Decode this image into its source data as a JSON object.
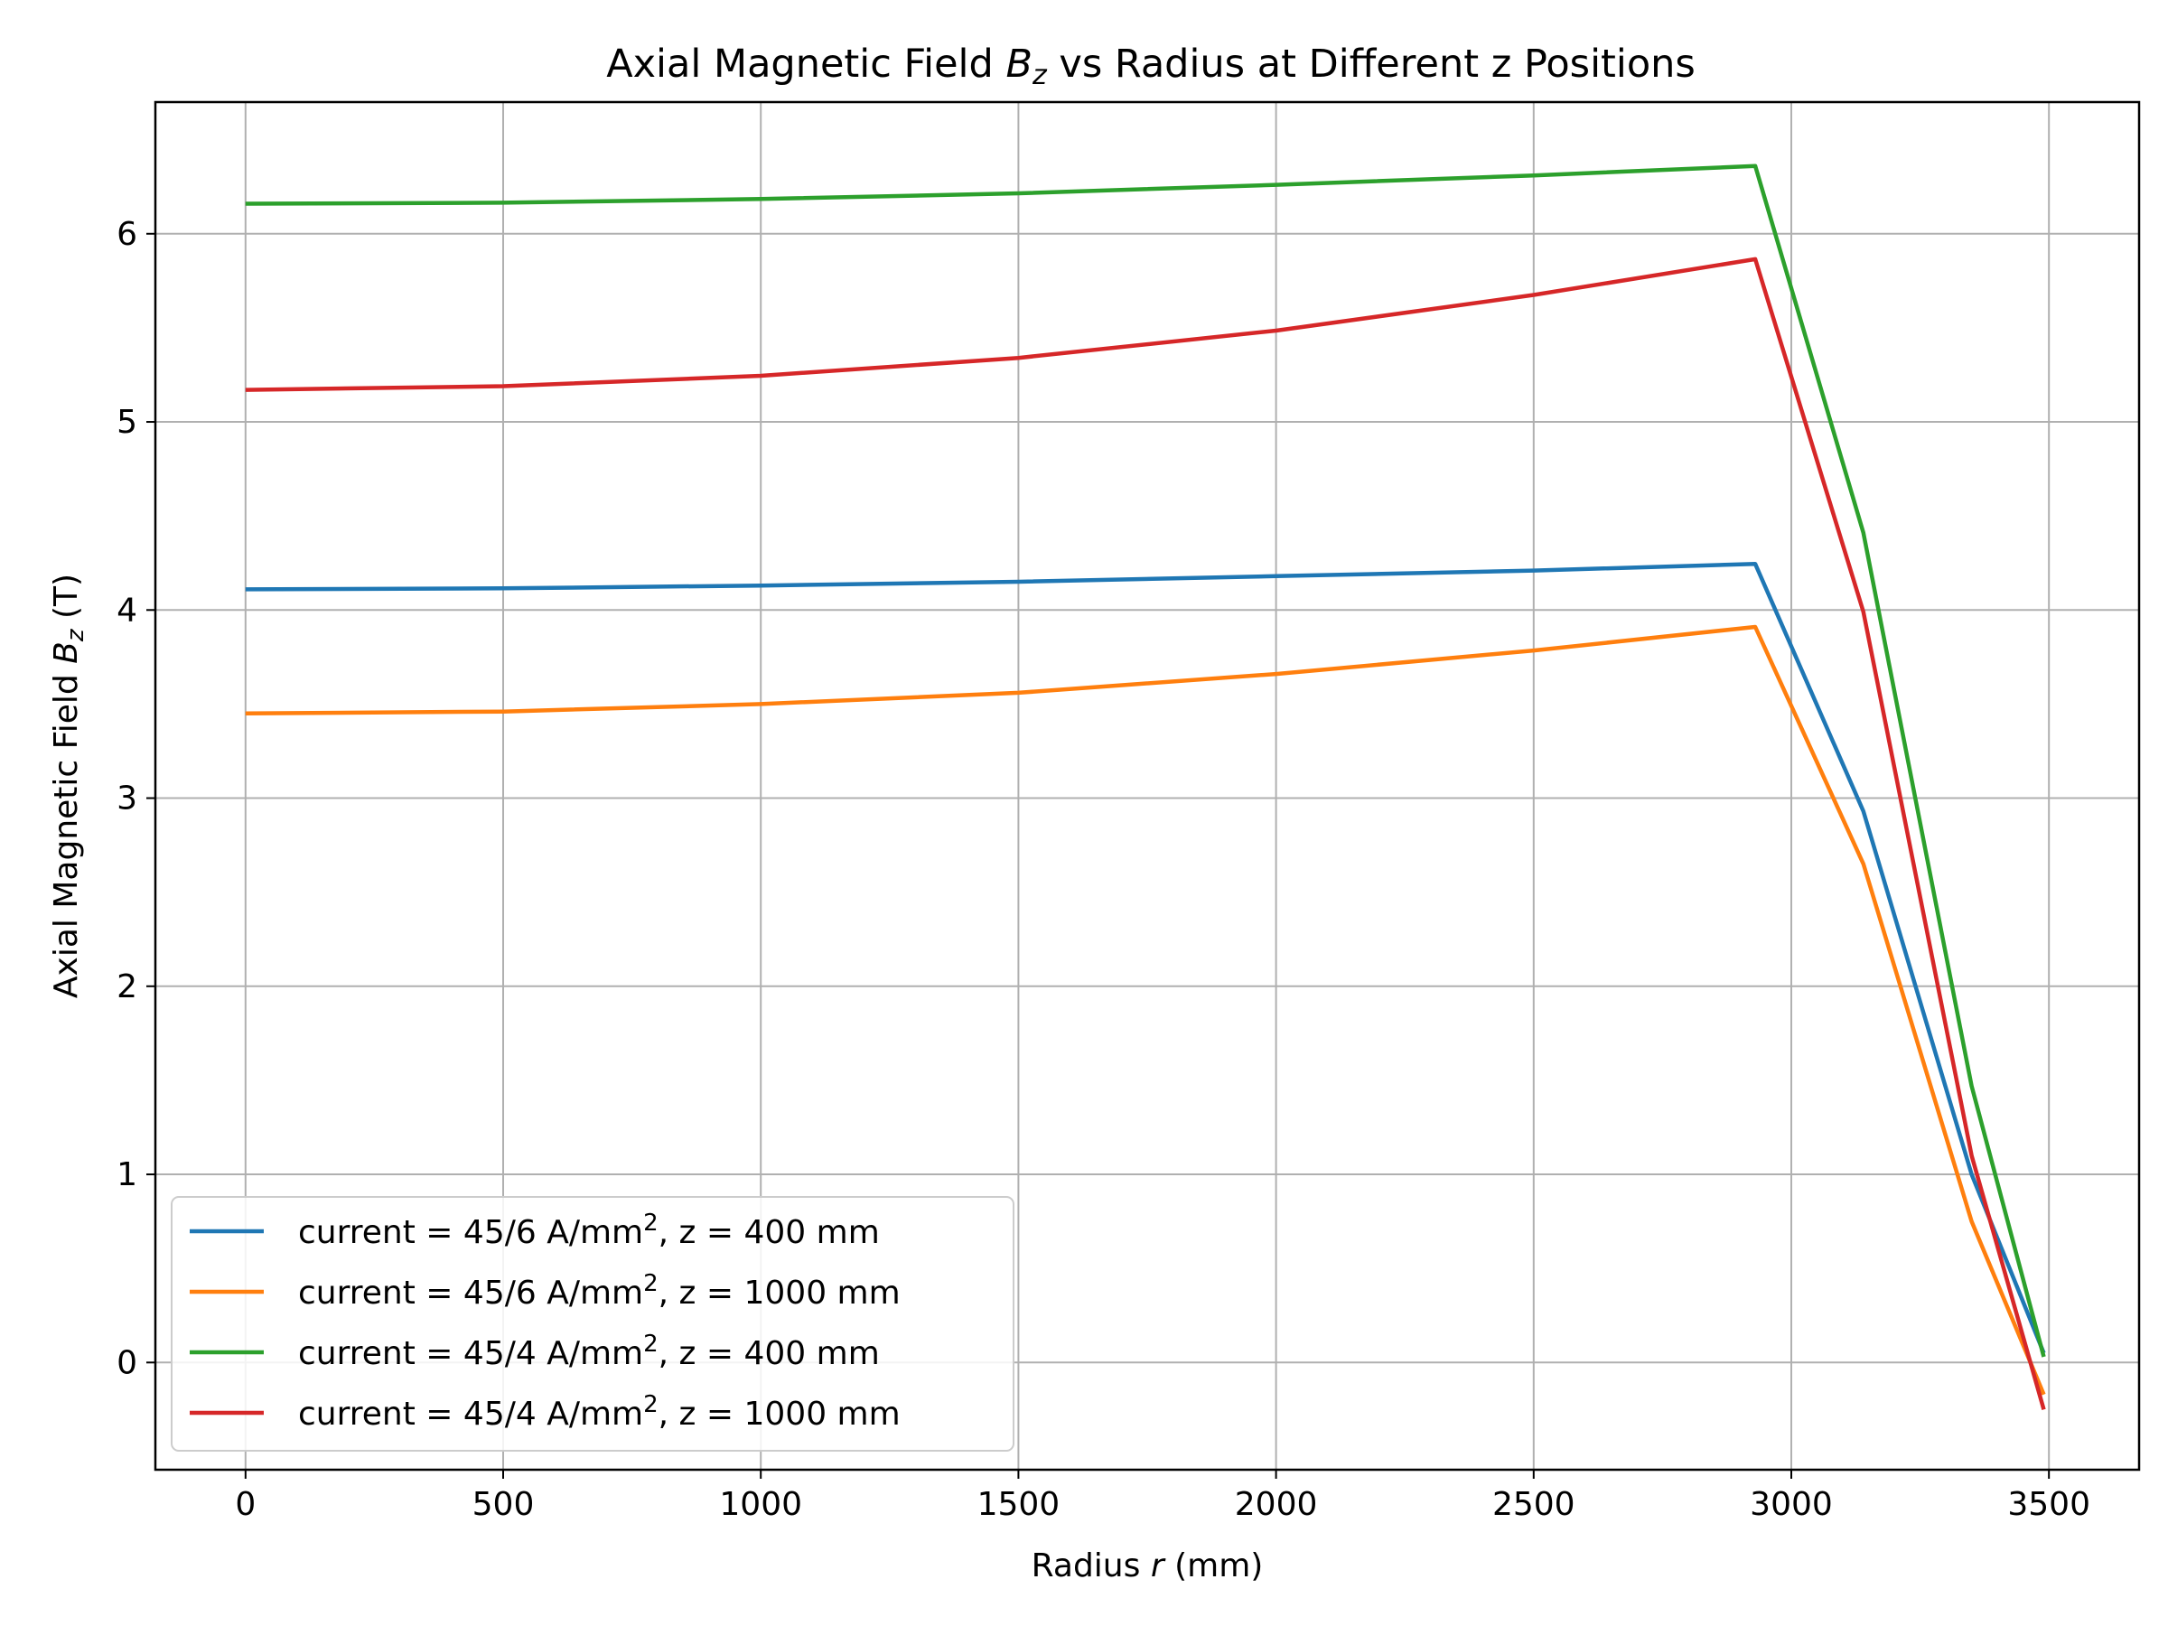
{
  "chart_data": {
    "type": "line",
    "title": "Axial Magnetic Field B_z vs Radius at Different z Positions",
    "title_parts": {
      "prefix": "Axial Magnetic Field ",
      "var": "B",
      "sub": "z",
      "suffix": " vs Radius at Different z Positions"
    },
    "xlabel": "Radius r (mm)",
    "xlabel_parts": {
      "prefix": "Radius ",
      "var": "r",
      "suffix": " (mm)"
    },
    "ylabel": "Axial Magnetic Field B_z (T)",
    "ylabel_parts": {
      "prefix": "Axial Magnetic Field ",
      "var": "B",
      "sub": "z",
      "suffix": " (T)"
    },
    "xlim": [
      -175,
      3675
    ],
    "ylim": [
      -0.57,
      6.7
    ],
    "xticks": [
      0,
      500,
      1000,
      1500,
      2000,
      2500,
      3000,
      3500
    ],
    "yticks": [
      0,
      1,
      2,
      3,
      4,
      5,
      6
    ],
    "grid": true,
    "legend_position": "lower-left",
    "series": [
      {
        "name": "current = 45/6 A/mm², z = 400 mm",
        "name_parts": {
          "prefix": "current = 45/6 A/mm",
          "sup": "2",
          "suffix": ", z = 400 mm"
        },
        "color": "#1f77b4",
        "x": [
          0,
          500,
          1000,
          1500,
          2000,
          2500,
          2930,
          3140,
          3350,
          3490
        ],
        "y": [
          4.11,
          4.115,
          4.13,
          4.15,
          4.18,
          4.21,
          4.245,
          2.93,
          1.0,
          0.05
        ]
      },
      {
        "name": "current = 45/6 A/mm², z = 1000 mm",
        "name_parts": {
          "prefix": "current = 45/6 A/mm",
          "sup": "2",
          "suffix": ", z = 1000 mm"
        },
        "color": "#ff7f0e",
        "x": [
          0,
          500,
          1000,
          1500,
          2000,
          2500,
          2930,
          3140,
          3350,
          3490
        ],
        "y": [
          3.45,
          3.46,
          3.5,
          3.56,
          3.66,
          3.785,
          3.91,
          2.65,
          0.75,
          -0.17
        ]
      },
      {
        "name": "current = 45/4 A/mm², z = 400 mm",
        "name_parts": {
          "prefix": "current = 45/4 A/mm",
          "sup": "2",
          "suffix": ", z = 400 mm"
        },
        "color": "#2ca02c",
        "x": [
          0,
          500,
          1000,
          1500,
          2000,
          2500,
          2930,
          3140,
          3350,
          3490
        ],
        "y": [
          6.16,
          6.165,
          6.185,
          6.215,
          6.26,
          6.31,
          6.36,
          4.41,
          1.47,
          0.03
        ]
      },
      {
        "name": "current = 45/4 A/mm², z = 1000 mm",
        "name_parts": {
          "prefix": "current = 45/4 A/mm",
          "sup": "2",
          "suffix": ", z = 1000 mm"
        },
        "color": "#d62728",
        "x": [
          0,
          500,
          1000,
          1500,
          2000,
          2500,
          2930,
          3140,
          3350,
          3490
        ],
        "y": [
          5.17,
          5.19,
          5.245,
          5.34,
          5.485,
          5.675,
          5.865,
          3.99,
          1.1,
          -0.25
        ]
      }
    ]
  }
}
